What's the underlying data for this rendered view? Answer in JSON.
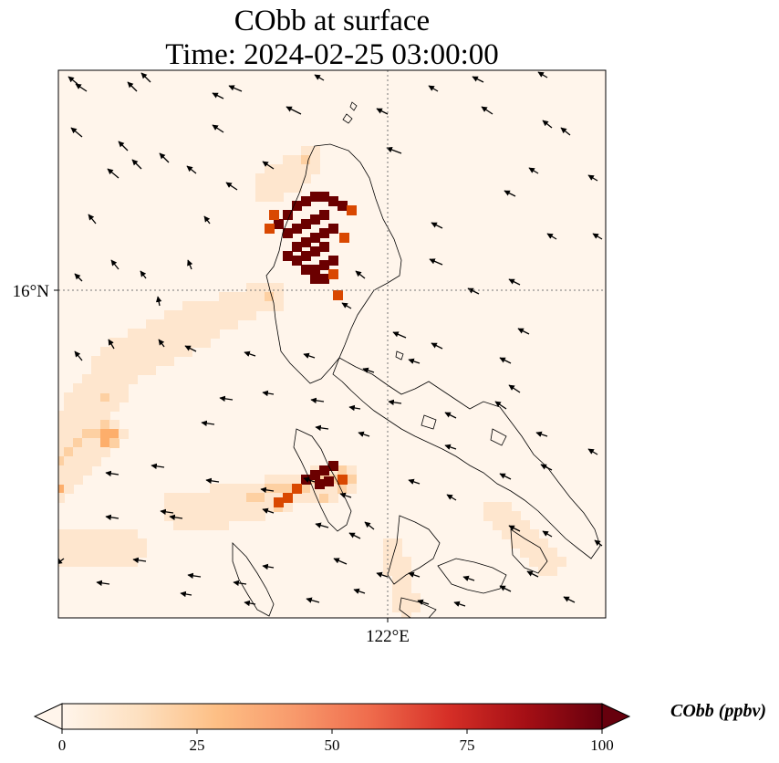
{
  "title": {
    "line1": "CObb at surface",
    "line2": "Time: 2024-02-25 03:00:00"
  },
  "map": {
    "lat_label": "16°N",
    "lon_label": "122°E",
    "colormap": [
      "#fff5eb",
      "#fee6ce",
      "#fdd0a2",
      "#fdae6b",
      "#f16913",
      "#d94801",
      "#a60000",
      "#6b0000"
    ]
  },
  "colorbar": {
    "label": "CObb (ppbv)",
    "ticks": [
      "0",
      "25",
      "50",
      "75",
      "100"
    ],
    "min": 0,
    "max": 100,
    "stops": [
      "#fff5eb",
      "#fde0c0",
      "#fdbf85",
      "#f89a6c",
      "#ef6b4c",
      "#d62f27",
      "#a50f15",
      "#67000d"
    ]
  }
}
